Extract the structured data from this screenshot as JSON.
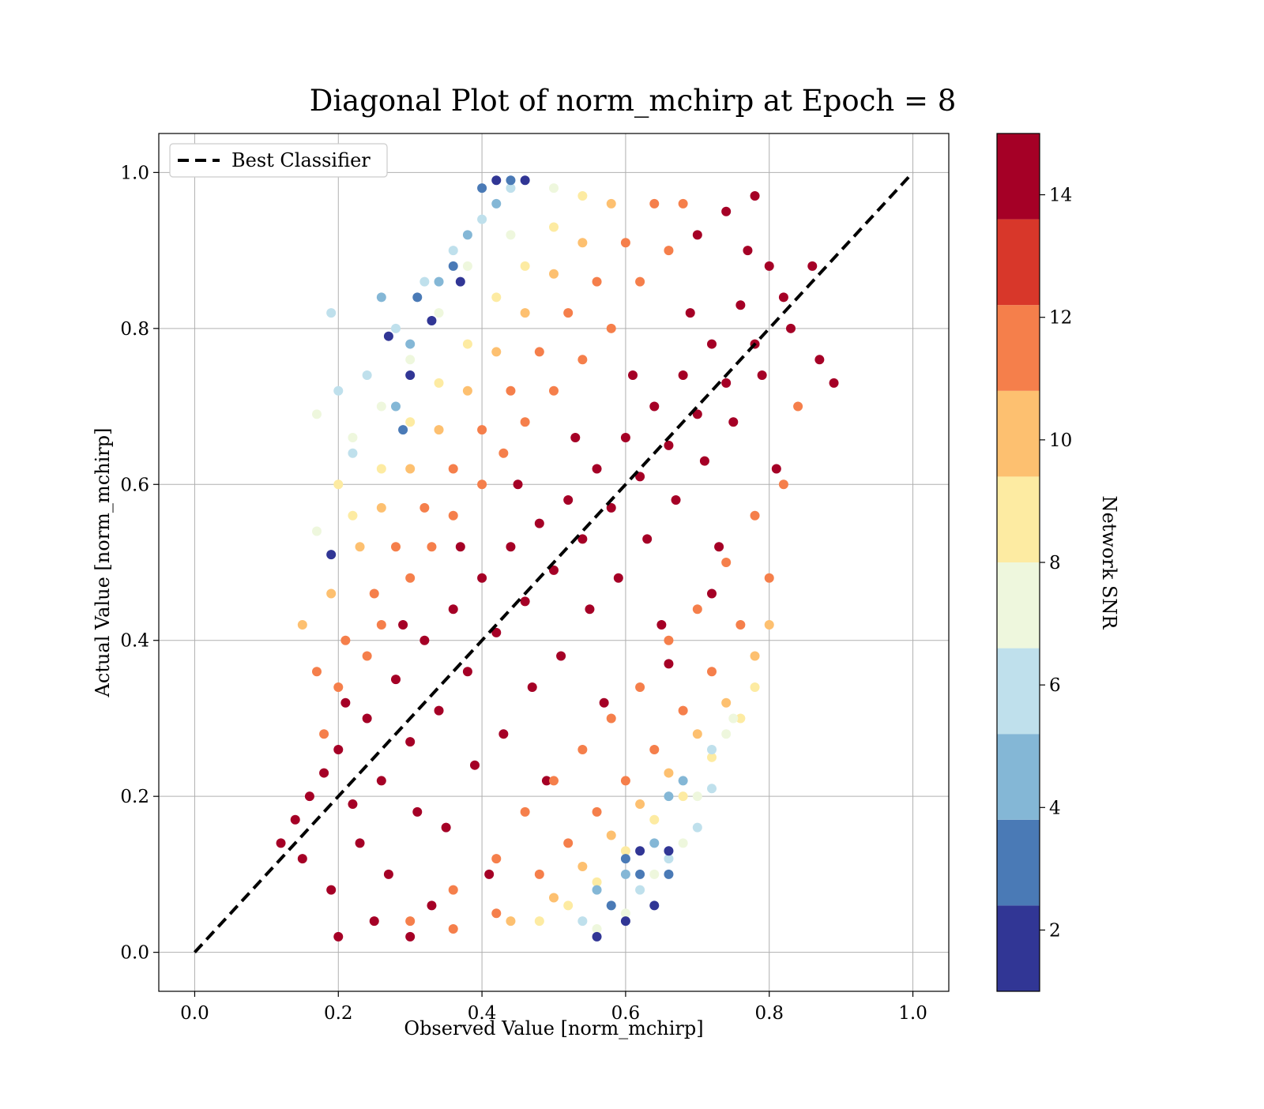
{
  "chart_data": {
    "type": "scatter",
    "title": "Diagonal Plot of norm_mchirp at Epoch = 8",
    "xlabel": "Observed Value [norm_mchirp]",
    "ylabel": "Actual Value [norm_mchirp]",
    "xlim": [
      -0.05,
      1.05
    ],
    "ylim": [
      -0.05,
      1.05
    ],
    "xticks": [
      0.0,
      0.2,
      0.4,
      0.6,
      0.8,
      1.0
    ],
    "yticks": [
      0.0,
      0.2,
      0.4,
      0.6,
      0.8,
      1.0
    ],
    "grid": true,
    "legend": {
      "placement": "upper-left",
      "entries": [
        {
          "label": "Best Classifier",
          "style": "dashed",
          "color": "#000000"
        }
      ]
    },
    "reference_line": {
      "label": "Best Classifier",
      "x": [
        0.0,
        1.0
      ],
      "y": [
        0.0,
        1.0
      ]
    },
    "colorbar": {
      "label": "Network SNR",
      "range": [
        1,
        15
      ],
      "ticks": [
        2,
        4,
        6,
        8,
        10,
        12,
        14
      ],
      "colors": [
        "#313695",
        "#4575b4",
        "#74add1",
        "#abd9e9",
        "#e0f3f8",
        "#ffffbf",
        "#fee090",
        "#fdae61",
        "#f46d43",
        "#d73027",
        "#a50026"
      ],
      "bands": [
        {
          "from": 1.0,
          "to": 2.4,
          "color": "#313695"
        },
        {
          "from": 2.4,
          "to": 3.8,
          "color": "#4a7ab6"
        },
        {
          "from": 3.8,
          "to": 5.2,
          "color": "#84b7d6"
        },
        {
          "from": 5.2,
          "to": 6.6,
          "color": "#bfe0ec"
        },
        {
          "from": 6.6,
          "to": 8.0,
          "color": "#eef7dd"
        },
        {
          "from": 8.0,
          "to": 9.4,
          "color": "#fdeba2"
        },
        {
          "from": 9.4,
          "to": 10.8,
          "color": "#fdc070"
        },
        {
          "from": 10.8,
          "to": 12.2,
          "color": "#f57f4b"
        },
        {
          "from": 12.2,
          "to": 13.6,
          "color": "#d8372a"
        },
        {
          "from": 13.6,
          "to": 15.0,
          "color": "#a50026"
        }
      ]
    },
    "points": [
      [
        0.16,
        0.2,
        14
      ],
      [
        0.18,
        0.23,
        14
      ],
      [
        0.2,
        0.26,
        14
      ],
      [
        0.22,
        0.19,
        14
      ],
      [
        0.24,
        0.3,
        14
      ],
      [
        0.26,
        0.22,
        14
      ],
      [
        0.28,
        0.35,
        14
      ],
      [
        0.3,
        0.27,
        14
      ],
      [
        0.32,
        0.4,
        14
      ],
      [
        0.34,
        0.31,
        14
      ],
      [
        0.36,
        0.44,
        14
      ],
      [
        0.38,
        0.36,
        14
      ],
      [
        0.4,
        0.48,
        14
      ],
      [
        0.42,
        0.41,
        14
      ],
      [
        0.44,
        0.52,
        14
      ],
      [
        0.46,
        0.45,
        14
      ],
      [
        0.48,
        0.55,
        14
      ],
      [
        0.5,
        0.49,
        14
      ],
      [
        0.52,
        0.58,
        14
      ],
      [
        0.54,
        0.53,
        14
      ],
      [
        0.56,
        0.62,
        14
      ],
      [
        0.58,
        0.57,
        14
      ],
      [
        0.6,
        0.66,
        14
      ],
      [
        0.62,
        0.61,
        14
      ],
      [
        0.64,
        0.7,
        14
      ],
      [
        0.66,
        0.65,
        14
      ],
      [
        0.68,
        0.74,
        14
      ],
      [
        0.7,
        0.69,
        14
      ],
      [
        0.72,
        0.78,
        14
      ],
      [
        0.74,
        0.73,
        14
      ],
      [
        0.76,
        0.83,
        14
      ],
      [
        0.78,
        0.78,
        14
      ],
      [
        0.8,
        0.88,
        14
      ],
      [
        0.82,
        0.84,
        14
      ],
      [
        0.15,
        0.12,
        14
      ],
      [
        0.19,
        0.08,
        14
      ],
      [
        0.23,
        0.14,
        14
      ],
      [
        0.27,
        0.1,
        14
      ],
      [
        0.31,
        0.18,
        14
      ],
      [
        0.35,
        0.16,
        14
      ],
      [
        0.39,
        0.24,
        14
      ],
      [
        0.43,
        0.28,
        14
      ],
      [
        0.47,
        0.34,
        14
      ],
      [
        0.51,
        0.38,
        14
      ],
      [
        0.55,
        0.44,
        14
      ],
      [
        0.59,
        0.48,
        14
      ],
      [
        0.63,
        0.53,
        14
      ],
      [
        0.67,
        0.58,
        14
      ],
      [
        0.71,
        0.63,
        14
      ],
      [
        0.75,
        0.68,
        14
      ],
      [
        0.79,
        0.74,
        14
      ],
      [
        0.83,
        0.8,
        14
      ],
      [
        0.86,
        0.88,
        14
      ],
      [
        0.78,
        0.97,
        14
      ],
      [
        0.74,
        0.95,
        14
      ],
      [
        0.7,
        0.92,
        14
      ],
      [
        0.14,
        0.17,
        14
      ],
      [
        0.21,
        0.32,
        14
      ],
      [
        0.29,
        0.42,
        14
      ],
      [
        0.37,
        0.52,
        14
      ],
      [
        0.45,
        0.6,
        14
      ],
      [
        0.53,
        0.66,
        14
      ],
      [
        0.61,
        0.74,
        14
      ],
      [
        0.69,
        0.82,
        14
      ],
      [
        0.77,
        0.9,
        14
      ],
      [
        0.25,
        0.04,
        14
      ],
      [
        0.33,
        0.06,
        14
      ],
      [
        0.41,
        0.1,
        14
      ],
      [
        0.49,
        0.22,
        14
      ],
      [
        0.57,
        0.32,
        14
      ],
      [
        0.65,
        0.42,
        14
      ],
      [
        0.73,
        0.52,
        14
      ],
      [
        0.81,
        0.62,
        14
      ],
      [
        0.87,
        0.76,
        14
      ],
      [
        0.89,
        0.73,
        14
      ],
      [
        0.12,
        0.14,
        14
      ],
      [
        0.2,
        0.02,
        14
      ],
      [
        0.3,
        0.02,
        14
      ],
      [
        0.66,
        0.37,
        14
      ],
      [
        0.72,
        0.46,
        14
      ],
      [
        0.18,
        0.28,
        12
      ],
      [
        0.2,
        0.34,
        12
      ],
      [
        0.24,
        0.38,
        12
      ],
      [
        0.26,
        0.42,
        12
      ],
      [
        0.3,
        0.48,
        12
      ],
      [
        0.33,
        0.52,
        12
      ],
      [
        0.36,
        0.56,
        12
      ],
      [
        0.4,
        0.6,
        12
      ],
      [
        0.43,
        0.64,
        12
      ],
      [
        0.46,
        0.68,
        12
      ],
      [
        0.5,
        0.72,
        12
      ],
      [
        0.54,
        0.76,
        12
      ],
      [
        0.58,
        0.8,
        12
      ],
      [
        0.62,
        0.86,
        12
      ],
      [
        0.66,
        0.9,
        12
      ],
      [
        0.68,
        0.96,
        12
      ],
      [
        0.3,
        0.04,
        12
      ],
      [
        0.36,
        0.08,
        12
      ],
      [
        0.42,
        0.12,
        12
      ],
      [
        0.46,
        0.18,
        12
      ],
      [
        0.5,
        0.22,
        12
      ],
      [
        0.54,
        0.26,
        12
      ],
      [
        0.58,
        0.3,
        12
      ],
      [
        0.62,
        0.34,
        12
      ],
      [
        0.66,
        0.4,
        12
      ],
      [
        0.7,
        0.44,
        12
      ],
      [
        0.74,
        0.5,
        12
      ],
      [
        0.78,
        0.56,
        12
      ],
      [
        0.82,
        0.6,
        12
      ],
      [
        0.84,
        0.7,
        12
      ],
      [
        0.17,
        0.36,
        11
      ],
      [
        0.21,
        0.4,
        11
      ],
      [
        0.25,
        0.46,
        11
      ],
      [
        0.28,
        0.52,
        11
      ],
      [
        0.32,
        0.57,
        11
      ],
      [
        0.36,
        0.62,
        11
      ],
      [
        0.4,
        0.67,
        11
      ],
      [
        0.44,
        0.72,
        11
      ],
      [
        0.48,
        0.77,
        11
      ],
      [
        0.52,
        0.82,
        11
      ],
      [
        0.56,
        0.86,
        11
      ],
      [
        0.6,
        0.91,
        11
      ],
      [
        0.64,
        0.96,
        11
      ],
      [
        0.36,
        0.03,
        11
      ],
      [
        0.42,
        0.05,
        11
      ],
      [
        0.48,
        0.1,
        11
      ],
      [
        0.52,
        0.14,
        11
      ],
      [
        0.56,
        0.18,
        11
      ],
      [
        0.6,
        0.22,
        11
      ],
      [
        0.64,
        0.26,
        11
      ],
      [
        0.68,
        0.31,
        11
      ],
      [
        0.72,
        0.36,
        11
      ],
      [
        0.76,
        0.42,
        11
      ],
      [
        0.8,
        0.48,
        11
      ],
      [
        0.15,
        0.42,
        10
      ],
      [
        0.19,
        0.46,
        10
      ],
      [
        0.23,
        0.52,
        10
      ],
      [
        0.26,
        0.57,
        10
      ],
      [
        0.3,
        0.62,
        10
      ],
      [
        0.34,
        0.67,
        10
      ],
      [
        0.38,
        0.72,
        10
      ],
      [
        0.42,
        0.77,
        10
      ],
      [
        0.46,
        0.82,
        10
      ],
      [
        0.5,
        0.87,
        10
      ],
      [
        0.54,
        0.91,
        10
      ],
      [
        0.58,
        0.96,
        10
      ],
      [
        0.44,
        0.04,
        10
      ],
      [
        0.5,
        0.07,
        10
      ],
      [
        0.54,
        0.11,
        10
      ],
      [
        0.58,
        0.15,
        10
      ],
      [
        0.62,
        0.19,
        10
      ],
      [
        0.66,
        0.23,
        10
      ],
      [
        0.7,
        0.28,
        10
      ],
      [
        0.74,
        0.32,
        10
      ],
      [
        0.78,
        0.38,
        10
      ],
      [
        0.8,
        0.42,
        10
      ],
      [
        0.22,
        0.56,
        9
      ],
      [
        0.26,
        0.62,
        9
      ],
      [
        0.3,
        0.68,
        9
      ],
      [
        0.34,
        0.73,
        9
      ],
      [
        0.38,
        0.78,
        9
      ],
      [
        0.42,
        0.84,
        9
      ],
      [
        0.46,
        0.88,
        9
      ],
      [
        0.5,
        0.93,
        9
      ],
      [
        0.54,
        0.97,
        9
      ],
      [
        0.2,
        0.6,
        9
      ],
      [
        0.48,
        0.04,
        9
      ],
      [
        0.52,
        0.06,
        9
      ],
      [
        0.56,
        0.09,
        9
      ],
      [
        0.6,
        0.13,
        9
      ],
      [
        0.64,
        0.17,
        9
      ],
      [
        0.68,
        0.2,
        9
      ],
      [
        0.72,
        0.25,
        9
      ],
      [
        0.76,
        0.3,
        9
      ],
      [
        0.78,
        0.34,
        9
      ],
      [
        0.17,
        0.69,
        7
      ],
      [
        0.22,
        0.66,
        7
      ],
      [
        0.26,
        0.7,
        7
      ],
      [
        0.3,
        0.76,
        7
      ],
      [
        0.34,
        0.82,
        7
      ],
      [
        0.38,
        0.88,
        7
      ],
      [
        0.44,
        0.92,
        7
      ],
      [
        0.5,
        0.98,
        7
      ],
      [
        0.17,
        0.54,
        7
      ],
      [
        0.56,
        0.03,
        7
      ],
      [
        0.6,
        0.05,
        7
      ],
      [
        0.64,
        0.1,
        7
      ],
      [
        0.68,
        0.14,
        7
      ],
      [
        0.7,
        0.2,
        7
      ],
      [
        0.74,
        0.28,
        7
      ],
      [
        0.75,
        0.3,
        7
      ],
      [
        0.2,
        0.72,
        6
      ],
      [
        0.24,
        0.74,
        6
      ],
      [
        0.28,
        0.8,
        6
      ],
      [
        0.32,
        0.86,
        6
      ],
      [
        0.36,
        0.9,
        6
      ],
      [
        0.4,
        0.94,
        6
      ],
      [
        0.44,
        0.98,
        6
      ],
      [
        0.19,
        0.82,
        6
      ],
      [
        0.22,
        0.64,
        6
      ],
      [
        0.54,
        0.04,
        6
      ],
      [
        0.58,
        0.06,
        6
      ],
      [
        0.62,
        0.08,
        6
      ],
      [
        0.66,
        0.12,
        6
      ],
      [
        0.7,
        0.16,
        6
      ],
      [
        0.72,
        0.21,
        6
      ],
      [
        0.72,
        0.26,
        6
      ],
      [
        0.26,
        0.84,
        5
      ],
      [
        0.3,
        0.78,
        5
      ],
      [
        0.34,
        0.86,
        5
      ],
      [
        0.38,
        0.92,
        5
      ],
      [
        0.42,
        0.96,
        5
      ],
      [
        0.28,
        0.7,
        5
      ],
      [
        0.56,
        0.08,
        5
      ],
      [
        0.6,
        0.1,
        5
      ],
      [
        0.64,
        0.14,
        5
      ],
      [
        0.66,
        0.2,
        5
      ],
      [
        0.68,
        0.22,
        5
      ],
      [
        0.31,
        0.84,
        3
      ],
      [
        0.36,
        0.88,
        3
      ],
      [
        0.4,
        0.98,
        3
      ],
      [
        0.44,
        0.99,
        3
      ],
      [
        0.29,
        0.67,
        3
      ],
      [
        0.58,
        0.06,
        3
      ],
      [
        0.62,
        0.1,
        3
      ],
      [
        0.66,
        0.1,
        3
      ],
      [
        0.6,
        0.12,
        3
      ],
      [
        0.33,
        0.81,
        1.5
      ],
      [
        0.37,
        0.86,
        1.5
      ],
      [
        0.42,
        0.99,
        1.5
      ],
      [
        0.46,
        0.99,
        1.5
      ],
      [
        0.27,
        0.79,
        1.5
      ],
      [
        0.3,
        0.74,
        1.5
      ],
      [
        0.56,
        0.02,
        1.5
      ],
      [
        0.6,
        0.04,
        1.5
      ],
      [
        0.64,
        0.06,
        1.5
      ],
      [
        0.66,
        0.13,
        1.5
      ],
      [
        0.62,
        0.13,
        1.5
      ],
      [
        0.19,
        0.51,
        1.5
      ]
    ]
  }
}
